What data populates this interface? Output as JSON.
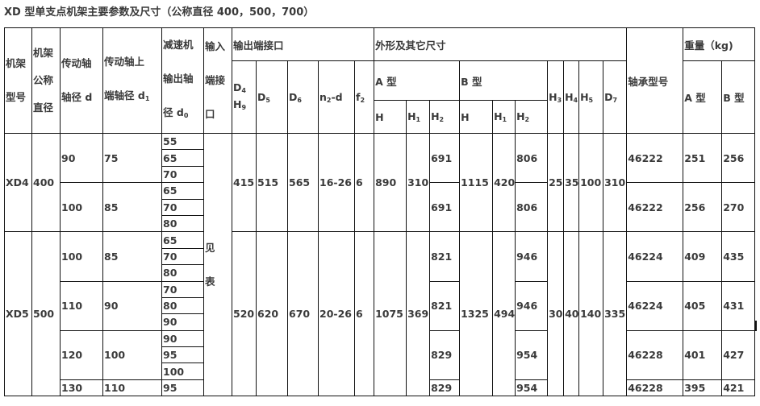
{
  "title": "XD 型单支点机架主要参数及尺寸（公称直径 400，500，700）",
  "header": {
    "frame_model": [
      "机架",
      "型号"
    ],
    "nominal_dia": [
      "机架",
      "公称",
      "直径"
    ],
    "shaft_d": [
      "传动轴",
      "轴径 d"
    ],
    "shaft_d1": {
      "lines": [
        "传动轴上",
        "端轴径 d"
      ],
      "sub": "1"
    },
    "reducer_d0": {
      "lines": [
        "减速机",
        "输出轴",
        "径 d"
      ],
      "sub": "0"
    },
    "input": [
      "输入",
      "端接",
      "口"
    ],
    "output_group": "输出端接口",
    "d4": {
      "base": "D",
      "sub": "4"
    },
    "h9": {
      "base": "H",
      "sub": "9"
    },
    "d5": {
      "base": "D",
      "sub": "5"
    },
    "d6": {
      "base": "D",
      "sub": "6"
    },
    "n2d": {
      "base": "n",
      "sub": "2",
      "tail": "-d"
    },
    "f2": {
      "base": "f",
      "sub": "2"
    },
    "outline_group": "外形及其它尺寸",
    "a_type": "A 型",
    "b_type": "B 型",
    "h": "H",
    "h1": {
      "base": "H",
      "sub": "1"
    },
    "h2": {
      "base": "H",
      "sub": "2"
    },
    "h3": {
      "base": "H",
      "sub": "3"
    },
    "h4": {
      "base": "H",
      "sub": "4"
    },
    "h5": {
      "base": "H",
      "sub": "5"
    },
    "d7": {
      "base": "D",
      "sub": "7"
    },
    "bearing": "轴承型号",
    "weight_group": "重量（kg)",
    "weight_a": "A 型",
    "weight_b": "B 型"
  },
  "input_note": [
    "见",
    "表"
  ],
  "frames": [
    {
      "model": "XD4",
      "nominal": "400",
      "D4": "415",
      "D5": "515",
      "D6": "565",
      "n2d": "16-26",
      "f2": "6",
      "A_H": "890",
      "A_H1": "310",
      "B_H": "1115",
      "B_H1": "420",
      "H3": "25",
      "H4": "35",
      "H5": "100",
      "D7": "310",
      "groups": [
        {
          "d": "90",
          "d1": "75",
          "d0": [
            "55",
            "65",
            "70"
          ],
          "A_H2": "691",
          "B_H2": "806",
          "bearing": "46222",
          "wA": "251",
          "wB": "256"
        },
        {
          "d": "100",
          "d1": "85",
          "d0": [
            "65",
            "70",
            "80"
          ],
          "A_H2": "691",
          "B_H2": "806",
          "bearing": "46222",
          "wA": "256",
          "wB": "270"
        }
      ]
    },
    {
      "model": "XD5",
      "nominal": "500",
      "D4": "520",
      "D5": "620",
      "D6": "670",
      "n2d": "20-26",
      "f2": "6",
      "A_H": "1075",
      "A_H1": "369",
      "B_H": "1325",
      "B_H1": "494",
      "H3": "30",
      "H4": "40",
      "H5": "140",
      "D7": "335",
      "groups": [
        {
          "d": "100",
          "d1": "85",
          "d0": [
            "65",
            "70",
            "80"
          ],
          "A_H2": "821",
          "B_H2": "946",
          "bearing": "46224",
          "wA": "409",
          "wB": "435"
        },
        {
          "d": "110",
          "d1": "90",
          "d0": [
            "70",
            "80",
            "90"
          ],
          "A_H2": "821",
          "B_H2": "946",
          "bearing": "46224",
          "wA": "405",
          "wB": "431"
        },
        {
          "d": "120",
          "d1": "100",
          "d0": [
            "90",
            "95",
            "100"
          ],
          "A_H2": "829",
          "B_H2": "954",
          "bearing": "46228",
          "wA": "401",
          "wB": "427"
        },
        {
          "d": "130",
          "d1": "110",
          "d0": [
            "95"
          ],
          "A_H2": "829",
          "B_H2": "954",
          "bearing": "46228",
          "wA": "395",
          "wB": "421"
        }
      ]
    }
  ]
}
